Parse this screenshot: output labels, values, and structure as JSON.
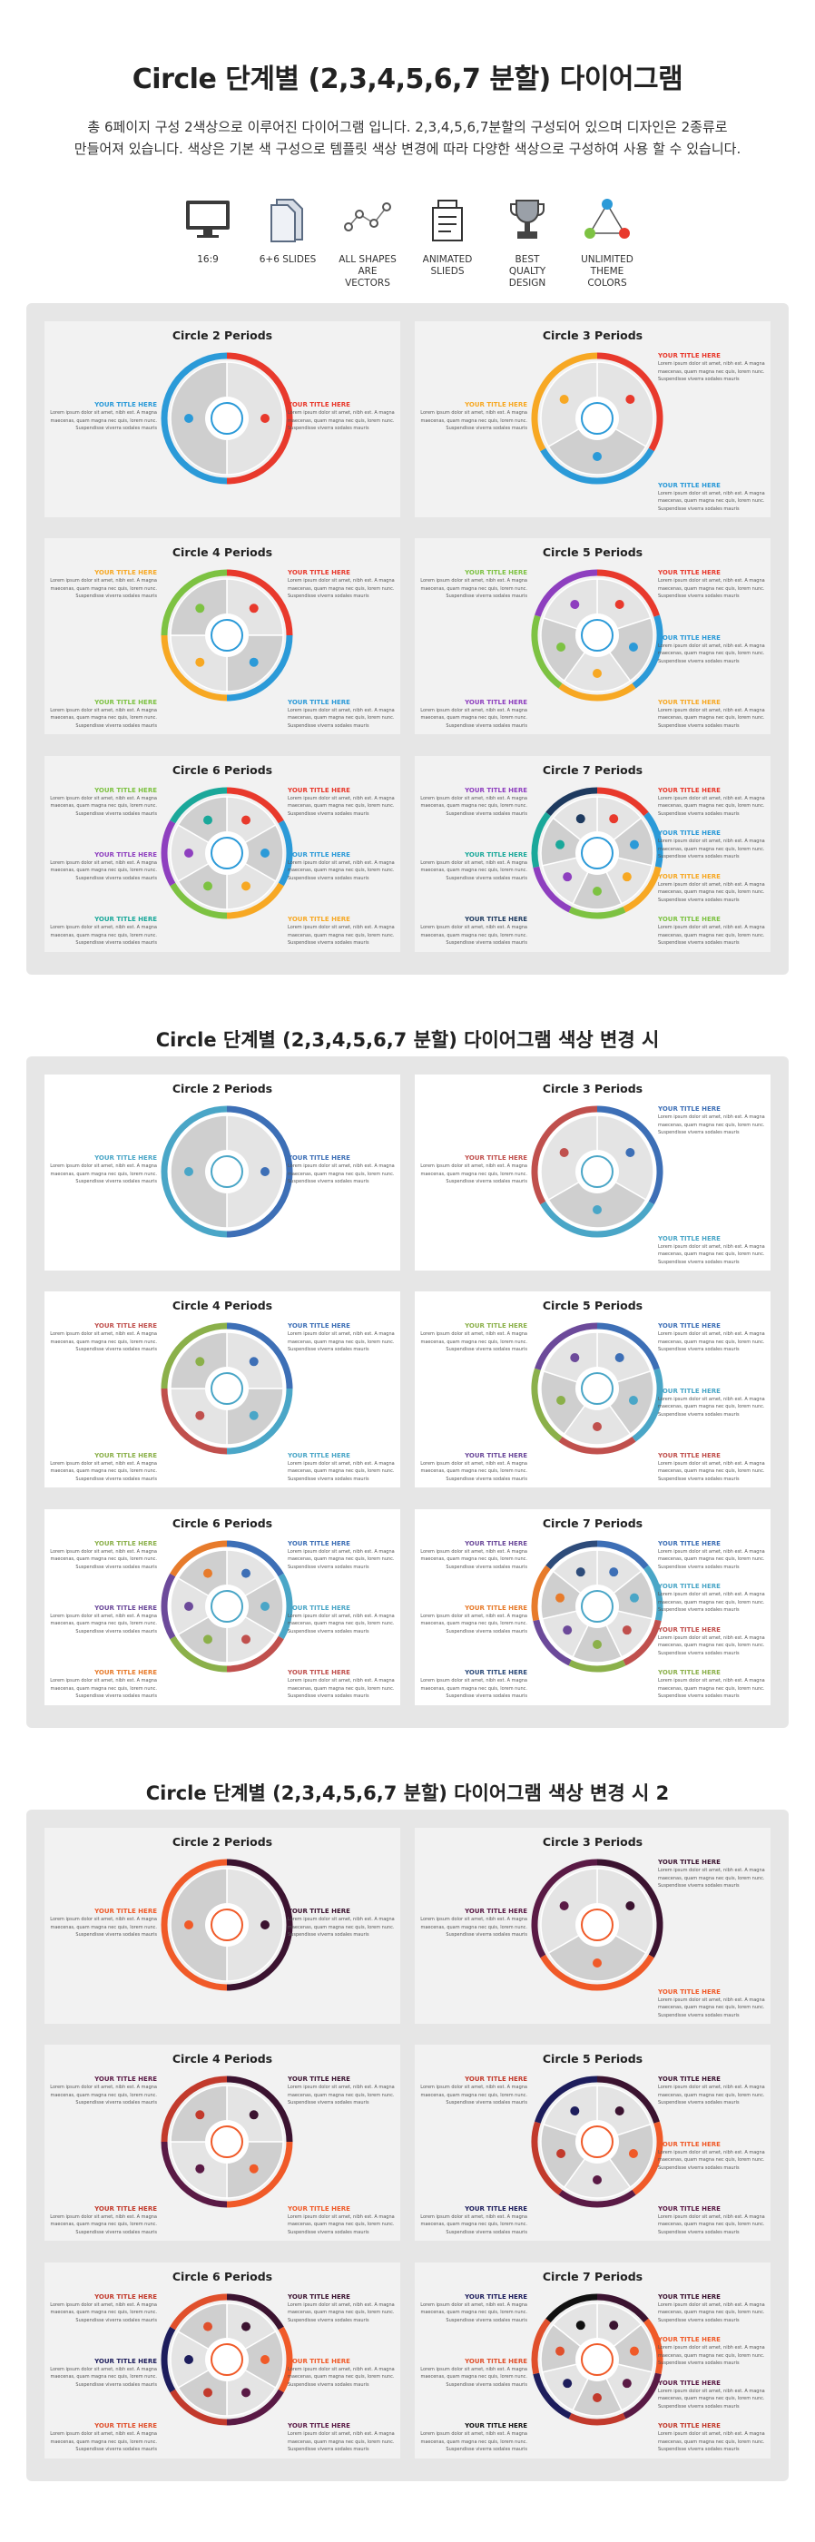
{
  "header": {
    "title": "Circle 단계별 (2,3,4,5,6,7 분할) 다이어그램",
    "description_line1": "총 6페이지 구성 2색상으로 이루어진 다이어그램 입니다. 2,3,4,5,6,7분할의 구성되어 있으며 디자인은 2종류로",
    "description_line2": "만들어져 있습니다. 색상은 기본 색 구성으로 템플릿 색상 변경에 따라 다양한 색상으로 구성하여 사용 할 수 있습니다."
  },
  "features": [
    {
      "icon": "monitor-icon",
      "label1": "16:9",
      "label2": ""
    },
    {
      "icon": "slides-icon",
      "label1": "6+6 SLIDES",
      "label2": ""
    },
    {
      "icon": "vector-nodes-icon",
      "label1": "ALL SHAPES",
      "label2": "ARE VECTORS"
    },
    {
      "icon": "animated-slides-icon",
      "label1": "ANIMATED",
      "label2": "SLIEDS"
    },
    {
      "icon": "trophy-icon",
      "label1": "BEST",
      "label2": "QUALTY DESIGN"
    },
    {
      "icon": "color-triangle-icon",
      "label1": "UNLIMITED",
      "label2": "THEME COLORS"
    }
  ],
  "sections": [
    {
      "title": ""
    },
    {
      "title": "Circle 단계별 (2,3,4,5,6,7 분할) 다이어그램 색상 변경 시"
    },
    {
      "title": "Circle 단계별 (2,3,4,5,6,7 분할) 다이어그램 색상 변경 시 2"
    }
  ],
  "cards": [
    {
      "title": "Circle 2 Periods"
    },
    {
      "title": "Circle 3 Periods"
    },
    {
      "title": "Circle 4 Periods"
    },
    {
      "title": "Circle 5 Periods"
    },
    {
      "title": "Circle 6 Periods"
    },
    {
      "title": "Circle 7 Periods"
    }
  ],
  "labels": {
    "heading": "YOUR TITLE HERE",
    "body1": "Lorem ipsum dolor sit amet, nibh est. A magna",
    "body2": "maecenas, quam magna nec quis, lorem nunc.",
    "body3": "Suspendisse viverra sodales mauris"
  },
  "palettes": {
    "bright": [
      "#e8392c",
      "#2b9ad8",
      "#f7a823",
      "#7dc242",
      "#8e3fbf",
      "#1aa89a",
      "#1e3a5f"
    ],
    "blue": [
      "#3d6fb6",
      "#4aa6c7",
      "#c0504d",
      "#8bb04a",
      "#6c4a9a",
      "#e77b2b",
      "#2e4c7a"
    ],
    "dark": [
      "#3b1330",
      "#f05a28",
      "#5a1a45",
      "#c23a2c",
      "#1d1d5c",
      "#e0502c",
      "#111111"
    ]
  }
}
